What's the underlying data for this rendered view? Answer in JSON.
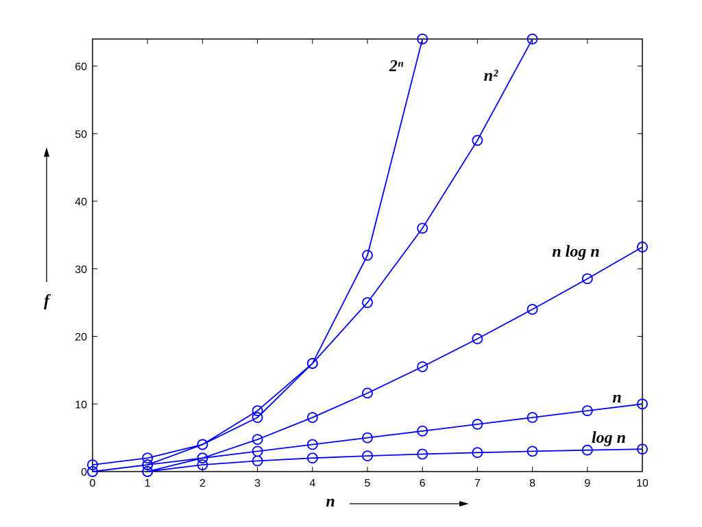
{
  "chart_data": {
    "type": "line",
    "xlabel": "n",
    "ylabel": "f",
    "xlim": [
      0,
      10
    ],
    "ylim": [
      0,
      64
    ],
    "xticks": [
      0,
      1,
      2,
      3,
      4,
      5,
      6,
      7,
      8,
      9,
      10
    ],
    "yticks": [
      0,
      10,
      20,
      30,
      40,
      50,
      60
    ],
    "marker": "circle",
    "series": [
      {
        "name": "2ⁿ",
        "color": "#0000ff",
        "x": [
          0,
          1,
          2,
          3,
          4,
          5,
          6
        ],
        "values": [
          1,
          2,
          4,
          8,
          16,
          32,
          64
        ]
      },
      {
        "name": "n²",
        "color": "#0000ff",
        "x": [
          0,
          1,
          2,
          3,
          4,
          5,
          6,
          7,
          8
        ],
        "values": [
          0,
          1,
          4,
          9,
          16,
          25,
          36,
          49,
          64
        ]
      },
      {
        "name": "n log n",
        "color": "#0000ff",
        "x": [
          1,
          2,
          3,
          4,
          5,
          6,
          7,
          8,
          9,
          10
        ],
        "values": [
          0,
          2,
          4.75,
          8,
          11.61,
          15.51,
          19.65,
          24,
          28.53,
          33.22
        ]
      },
      {
        "name": "n",
        "color": "#0000ff",
        "x": [
          0,
          1,
          2,
          3,
          4,
          5,
          6,
          7,
          8,
          9,
          10
        ],
        "values": [
          0,
          1,
          2,
          3,
          4,
          5,
          6,
          7,
          8,
          9,
          10
        ]
      },
      {
        "name": "log n",
        "color": "#0000ff",
        "x": [
          1,
          2,
          3,
          4,
          5,
          6,
          7,
          8,
          9,
          10
        ],
        "values": [
          0,
          1,
          1.58,
          2,
          2.32,
          2.58,
          2.81,
          3,
          3.17,
          3.32
        ]
      }
    ]
  }
}
